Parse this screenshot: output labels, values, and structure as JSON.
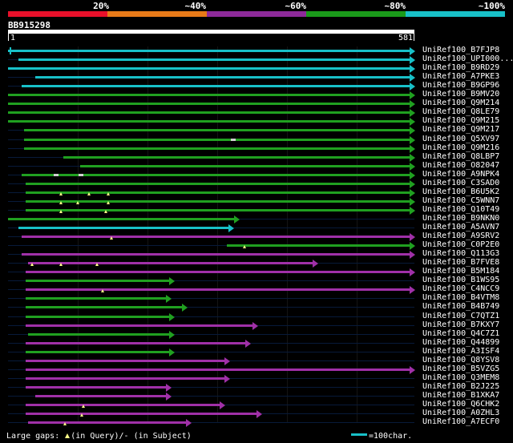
{
  "legend": {
    "labels": [
      "20%",
      "~40%",
      "~60%",
      "~80%",
      "~100%"
    ],
    "colors": [
      "#e8102a",
      "#e87a18",
      "#8e2a9a",
      "#1a9a1a",
      "#18c0c8"
    ]
  },
  "query": {
    "name": "BB915298",
    "start": "1",
    "end": "581",
    "length": 581
  },
  "colors": {
    "cyan": "#18c0c8",
    "green": "#20a020",
    "purple": "#a030a8"
  },
  "hits": [
    {
      "name": "UniRef100_B7FJP8",
      "color": "cyan",
      "start": 1,
      "end": 581,
      "marks": [],
      "smarks": [],
      "leftcap": true
    },
    {
      "name": "UniRef100_UPI000...",
      "color": "cyan",
      "start": 16,
      "end": 581,
      "marks": [],
      "smarks": []
    },
    {
      "name": "UniRef100_B9RD29",
      "color": "cyan",
      "start": 1,
      "end": 581,
      "marks": [],
      "smarks": []
    },
    {
      "name": "UniRef100_A7PKE3",
      "color": "cyan",
      "start": 40,
      "end": 581,
      "marks": [],
      "smarks": []
    },
    {
      "name": "UniRef100_B9GP96",
      "color": "cyan",
      "start": 20,
      "end": 581,
      "marks": [],
      "smarks": []
    },
    {
      "name": "UniRef100_B9MV20",
      "color": "green",
      "start": 1,
      "end": 581,
      "marks": [],
      "smarks": []
    },
    {
      "name": "UniRef100_Q9M214",
      "color": "green",
      "start": 1,
      "end": 581,
      "marks": [],
      "smarks": []
    },
    {
      "name": "UniRef100_Q8LE79",
      "color": "green",
      "start": 1,
      "end": 581,
      "marks": [],
      "smarks": []
    },
    {
      "name": "UniRef100_Q9M215",
      "color": "green",
      "start": 1,
      "end": 581,
      "marks": [],
      "smarks": []
    },
    {
      "name": "UniRef100_Q9M217",
      "color": "green",
      "start": 24,
      "end": 581,
      "marks": [],
      "smarks": []
    },
    {
      "name": "UniRef100_Q5XV97",
      "color": "green",
      "start": 24,
      "end": 581,
      "marks": [],
      "smarks": [
        323
      ]
    },
    {
      "name": "UniRef100_Q9M216",
      "color": "green",
      "start": 24,
      "end": 581,
      "marks": [],
      "smarks": []
    },
    {
      "name": "UniRef100_Q8LBP7",
      "color": "green",
      "start": 80,
      "end": 581,
      "marks": [],
      "smarks": []
    },
    {
      "name": "UniRef100_O82047",
      "color": "green",
      "start": 104,
      "end": 581,
      "marks": [],
      "smarks": []
    },
    {
      "name": "UniRef100_A9NPK4",
      "color": "green",
      "start": 20,
      "end": 581,
      "marks": [],
      "smarks": [
        70,
        105
      ]
    },
    {
      "name": "UniRef100_C3SAD0",
      "color": "green",
      "start": 26,
      "end": 581,
      "marks": [],
      "smarks": []
    },
    {
      "name": "UniRef100_B6U5K2",
      "color": "green",
      "start": 26,
      "end": 581,
      "marks": [
        77,
        116,
        144
      ],
      "smarks": []
    },
    {
      "name": "UniRef100_C5WNN7",
      "color": "green",
      "start": 26,
      "end": 581,
      "marks": [
        77,
        100,
        144
      ],
      "smarks": []
    },
    {
      "name": "UniRef100_Q10T49",
      "color": "green",
      "start": 26,
      "end": 581,
      "marks": [
        77,
        140
      ],
      "smarks": []
    },
    {
      "name": "UniRef100_B9NKN0",
      "color": "green",
      "start": 1,
      "end": 330,
      "marks": [],
      "smarks": []
    },
    {
      "name": "UniRef100_A5AVN7",
      "color": "cyan",
      "start": 16,
      "end": 323,
      "marks": [],
      "smarks": []
    },
    {
      "name": "UniRef100_A9SRV2",
      "color": "purple",
      "start": 20,
      "end": 581,
      "marks": [
        149
      ],
      "smarks": []
    },
    {
      "name": "UniRef100_C0P2E0",
      "color": "green",
      "start": 313,
      "end": 581,
      "marks": [
        338
      ],
      "smarks": []
    },
    {
      "name": "UniRef100_Q113G3",
      "color": "purple",
      "start": 20,
      "end": 581,
      "marks": [],
      "smarks": []
    },
    {
      "name": "UniRef100_B7FVE8",
      "color": "purple",
      "start": 30,
      "end": 443,
      "marks": [
        35,
        76,
        128
      ],
      "smarks": []
    },
    {
      "name": "UniRef100_B5M184",
      "color": "purple",
      "start": 26,
      "end": 581,
      "marks": [],
      "smarks": []
    },
    {
      "name": "UniRef100_B1WS95",
      "color": "green",
      "start": 26,
      "end": 238,
      "marks": [],
      "smarks": []
    },
    {
      "name": "UniRef100_C4NCC9",
      "color": "purple",
      "start": 26,
      "end": 581,
      "marks": [
        136
      ],
      "smarks": []
    },
    {
      "name": "UniRef100_B4VTM8",
      "color": "green",
      "start": 26,
      "end": 233,
      "marks": [],
      "smarks": []
    },
    {
      "name": "UniRef100_B4B749",
      "color": "green",
      "start": 26,
      "end": 256,
      "marks": [],
      "smarks": []
    },
    {
      "name": "UniRef100_C7QTZ1",
      "color": "green",
      "start": 26,
      "end": 238,
      "marks": [],
      "smarks": []
    },
    {
      "name": "UniRef100_B7KXY7",
      "color": "purple",
      "start": 26,
      "end": 357,
      "marks": [],
      "smarks": []
    },
    {
      "name": "UniRef100_Q4C7Z1",
      "color": "green",
      "start": 30,
      "end": 238,
      "marks": [],
      "smarks": []
    },
    {
      "name": "UniRef100_Q44899",
      "color": "purple",
      "start": 26,
      "end": 347,
      "marks": [],
      "smarks": []
    },
    {
      "name": "UniRef100_A3ISF4",
      "color": "green",
      "start": 26,
      "end": 238,
      "marks": [],
      "smarks": []
    },
    {
      "name": "UniRef100_Q8YSV8",
      "color": "purple",
      "start": 26,
      "end": 317,
      "marks": [],
      "smarks": []
    },
    {
      "name": "UniRef100_B5VZG5",
      "color": "purple",
      "start": 26,
      "end": 581,
      "marks": [],
      "smarks": []
    },
    {
      "name": "UniRef100_Q3MEM8",
      "color": "purple",
      "start": 26,
      "end": 317,
      "marks": [],
      "smarks": []
    },
    {
      "name": "UniRef100_B2J225",
      "color": "purple",
      "start": 26,
      "end": 233,
      "marks": [],
      "smarks": []
    },
    {
      "name": "UniRef100_B1XKA7",
      "color": "purple",
      "start": 40,
      "end": 233,
      "marks": [],
      "smarks": []
    },
    {
      "name": "UniRef100_Q6CHK2",
      "color": "purple",
      "start": 26,
      "end": 310,
      "marks": [
        108
      ],
      "smarks": []
    },
    {
      "name": "UniRef100_A0ZHL3",
      "color": "purple",
      "start": 26,
      "end": 362,
      "marks": [
        106
      ],
      "smarks": []
    },
    {
      "name": "UniRef100_A7ECF0",
      "color": "purple",
      "start": 30,
      "end": 262,
      "marks": [
        82
      ],
      "smarks": []
    }
  ],
  "footer": {
    "prefix": "Large gaps:",
    "in_query": "(in Query)/",
    "dash": "-",
    "in_subject": "(in Subject)"
  },
  "scale": {
    "label": "=100char."
  }
}
